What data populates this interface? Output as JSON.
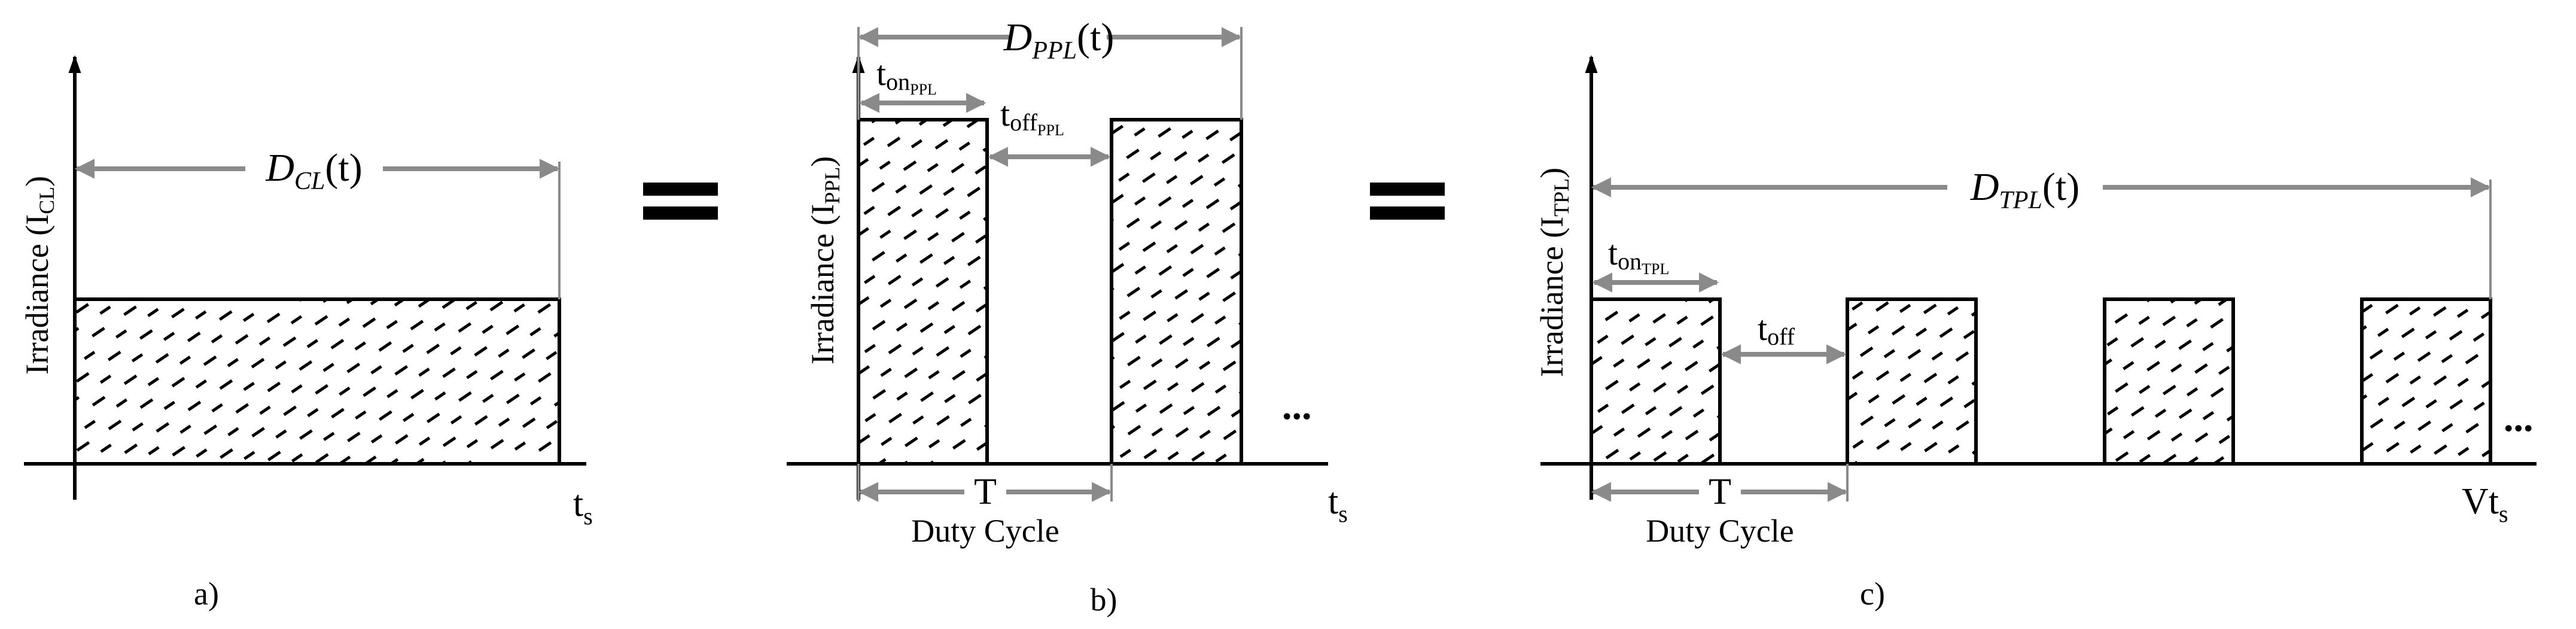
{
  "panels": [
    {
      "id": "a",
      "caption": "a)",
      "ylabel_main": "Irradiance (I",
      "ylabel_sub": "CL",
      "ylabel_close": ")",
      "xlabel_main": "t",
      "xlabel_sub": "s",
      "dose_main": "D",
      "dose_sub": "CL",
      "dose_arg": "(t)"
    },
    {
      "id": "b",
      "caption": "b)",
      "ylabel_main": "Irradiance (I",
      "ylabel_sub": "PPL",
      "ylabel_close": ")",
      "xlabel_main": "t",
      "xlabel_sub": "s",
      "dose_main": "D",
      "dose_sub": "PPL",
      "dose_arg": "(t)",
      "ton_main": "t",
      "ton_sub": "on",
      "ton_subsub": "PPL",
      "toff_main": "t",
      "toff_sub": "off",
      "toff_subsub": "PPL",
      "period_label": "T",
      "duty_label": "Duty Cycle",
      "ellipsis": "..."
    },
    {
      "id": "c",
      "caption": "c)",
      "ylabel_main": "Irradiance (I",
      "ylabel_sub": "TPL",
      "ylabel_close": ")",
      "xlabel_main": "Vt",
      "xlabel_sub": "s",
      "dose_main": "D",
      "dose_sub": "TPL",
      "dose_arg": "(t)",
      "ton_main": "t",
      "ton_sub": "on",
      "ton_subsub": "TPL",
      "toff_main": "t",
      "toff_sub": "off",
      "period_label": "T",
      "duty_label": "Duty Cycle",
      "ellipsis": "..."
    }
  ],
  "equals": [
    "=",
    "="
  ],
  "colors": {
    "stroke": "#000000",
    "arrow": "#8a8a8a",
    "background": "#ffffff"
  },
  "levels": {
    "irradiance_a": 0.52,
    "irradiance_b": 1.0,
    "irradiance_c": 0.52
  }
}
